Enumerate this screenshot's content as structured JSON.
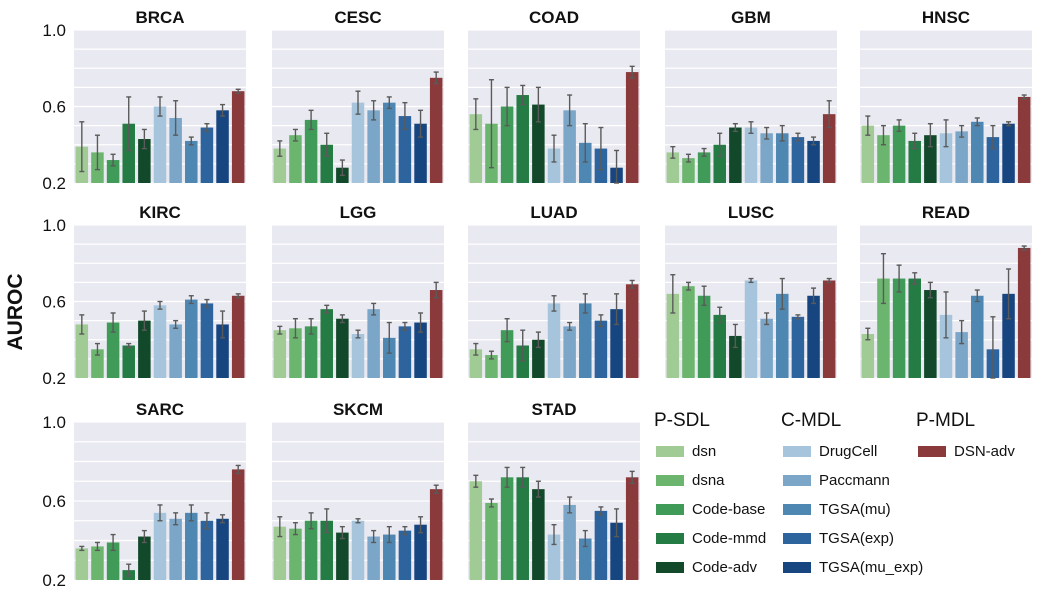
{
  "chart_data": {
    "type": "bar",
    "ylabel": "AUROC",
    "ylim": [
      0.2,
      1.0
    ],
    "yticks": [
      "1.0",
      "0.6",
      "0.2"
    ],
    "grid": true,
    "legend_position": "bottom-right",
    "legend_groups": [
      {
        "title": "P-SDL",
        "series": [
          "dsn",
          "dsna",
          "Code-base",
          "Code-mmd",
          "Code-adv"
        ]
      },
      {
        "title": "C-MDL",
        "series": [
          "DrugCell",
          "Paccmann",
          "TGSA(mu)",
          "TGSA(exp)",
          "TGSA(mu_exp)"
        ]
      },
      {
        "title": "P-MDL",
        "series": [
          "DSN-adv"
        ]
      }
    ],
    "series": [
      {
        "name": "dsn",
        "color": "#a0cb94"
      },
      {
        "name": "dsna",
        "color": "#6cb56e"
      },
      {
        "name": "Code-base",
        "color": "#3f9b57"
      },
      {
        "name": "Code-mmd",
        "color": "#257b44"
      },
      {
        "name": "Code-adv",
        "color": "#12492a"
      },
      {
        "name": "DrugCell",
        "color": "#a6c5dd"
      },
      {
        "name": "Paccmann",
        "color": "#7ba6c7"
      },
      {
        "name": "TGSA(mu)",
        "color": "#4f87b3"
      },
      {
        "name": "TGSA(exp)",
        "color": "#2e649d"
      },
      {
        "name": "TGSA(mu_exp)",
        "color": "#16457f"
      },
      {
        "name": "DSN-adv",
        "color": "#8b3a3c"
      }
    ],
    "panels": [
      {
        "title": "BRCA",
        "values": [
          0.39,
          0.36,
          0.32,
          0.51,
          0.43,
          0.6,
          0.54,
          0.42,
          0.49,
          0.58,
          0.68
        ],
        "errors": [
          0.13,
          0.09,
          0.03,
          0.14,
          0.05,
          0.05,
          0.09,
          0.02,
          0.02,
          0.03,
          0.01
        ]
      },
      {
        "title": "CESC",
        "values": [
          0.38,
          0.45,
          0.53,
          0.4,
          0.28,
          0.62,
          0.58,
          0.62,
          0.55,
          0.51,
          0.75
        ],
        "errors": [
          0.04,
          0.03,
          0.05,
          0.06,
          0.04,
          0.06,
          0.05,
          0.03,
          0.07,
          0.07,
          0.03
        ]
      },
      {
        "title": "COAD",
        "values": [
          0.56,
          0.51,
          0.6,
          0.66,
          0.61,
          0.38,
          0.58,
          0.41,
          0.38,
          0.28,
          0.78
        ],
        "errors": [
          0.08,
          0.23,
          0.1,
          0.05,
          0.09,
          0.07,
          0.08,
          0.1,
          0.11,
          0.09,
          0.03
        ]
      },
      {
        "title": "GBM",
        "values": [
          0.36,
          0.33,
          0.36,
          0.4,
          0.49,
          0.49,
          0.46,
          0.46,
          0.44,
          0.42,
          0.56
        ],
        "errors": [
          0.03,
          0.02,
          0.02,
          0.06,
          0.02,
          0.03,
          0.03,
          0.04,
          0.02,
          0.02,
          0.07
        ]
      },
      {
        "title": "HNSC",
        "values": [
          0.5,
          0.45,
          0.5,
          0.42,
          0.45,
          0.46,
          0.47,
          0.52,
          0.44,
          0.51,
          0.65
        ],
        "errors": [
          0.05,
          0.05,
          0.03,
          0.04,
          0.06,
          0.07,
          0.03,
          0.02,
          0.06,
          0.01,
          0.01
        ]
      },
      {
        "title": "KIRC",
        "values": [
          0.48,
          0.35,
          0.49,
          0.37,
          0.5,
          0.58,
          0.48,
          0.61,
          0.59,
          0.48,
          0.63
        ],
        "errors": [
          0.05,
          0.03,
          0.05,
          0.01,
          0.05,
          0.02,
          0.02,
          0.02,
          0.02,
          0.07,
          0.01
        ]
      },
      {
        "title": "LGG",
        "values": [
          0.45,
          0.46,
          0.47,
          0.56,
          0.51,
          0.43,
          0.56,
          0.41,
          0.47,
          0.49,
          0.66
        ],
        "errors": [
          0.02,
          0.05,
          0.04,
          0.02,
          0.02,
          0.02,
          0.03,
          0.08,
          0.02,
          0.05,
          0.04
        ]
      },
      {
        "title": "LUAD",
        "values": [
          0.35,
          0.32,
          0.45,
          0.37,
          0.4,
          0.59,
          0.47,
          0.59,
          0.5,
          0.56,
          0.69
        ],
        "errors": [
          0.03,
          0.02,
          0.06,
          0.08,
          0.04,
          0.04,
          0.02,
          0.05,
          0.03,
          0.08,
          0.02
        ]
      },
      {
        "title": "LUSC",
        "values": [
          0.64,
          0.68,
          0.63,
          0.53,
          0.42,
          0.71,
          0.51,
          0.64,
          0.52,
          0.63,
          0.71
        ],
        "errors": [
          0.1,
          0.02,
          0.05,
          0.04,
          0.06,
          0.01,
          0.03,
          0.08,
          0.01,
          0.04,
          0.01
        ]
      },
      {
        "title": "READ",
        "values": [
          0.43,
          0.72,
          0.72,
          0.72,
          0.66,
          0.53,
          0.44,
          0.63,
          0.35,
          0.64,
          0.88
        ],
        "errors": [
          0.03,
          0.13,
          0.07,
          0.03,
          0.04,
          0.12,
          0.06,
          0.03,
          0.17,
          0.13,
          0.01
        ]
      },
      {
        "title": "SARC",
        "values": [
          0.36,
          0.37,
          0.39,
          0.25,
          0.42,
          0.54,
          0.51,
          0.54,
          0.5,
          0.51,
          0.76
        ],
        "errors": [
          0.01,
          0.02,
          0.04,
          0.03,
          0.03,
          0.04,
          0.03,
          0.04,
          0.04,
          0.02,
          0.02
        ]
      },
      {
        "title": "SKCM",
        "values": [
          0.47,
          0.46,
          0.5,
          0.5,
          0.44,
          0.5,
          0.42,
          0.43,
          0.45,
          0.48,
          0.66
        ],
        "errors": [
          0.05,
          0.03,
          0.04,
          0.06,
          0.03,
          0.01,
          0.03,
          0.04,
          0.02,
          0.04,
          0.02
        ]
      },
      {
        "title": "STAD",
        "values": [
          0.7,
          0.59,
          0.72,
          0.72,
          0.66,
          0.43,
          0.58,
          0.41,
          0.55,
          0.49,
          0.72
        ],
        "errors": [
          0.03,
          0.02,
          0.05,
          0.05,
          0.04,
          0.05,
          0.04,
          0.04,
          0.02,
          0.07,
          0.03
        ]
      }
    ]
  }
}
